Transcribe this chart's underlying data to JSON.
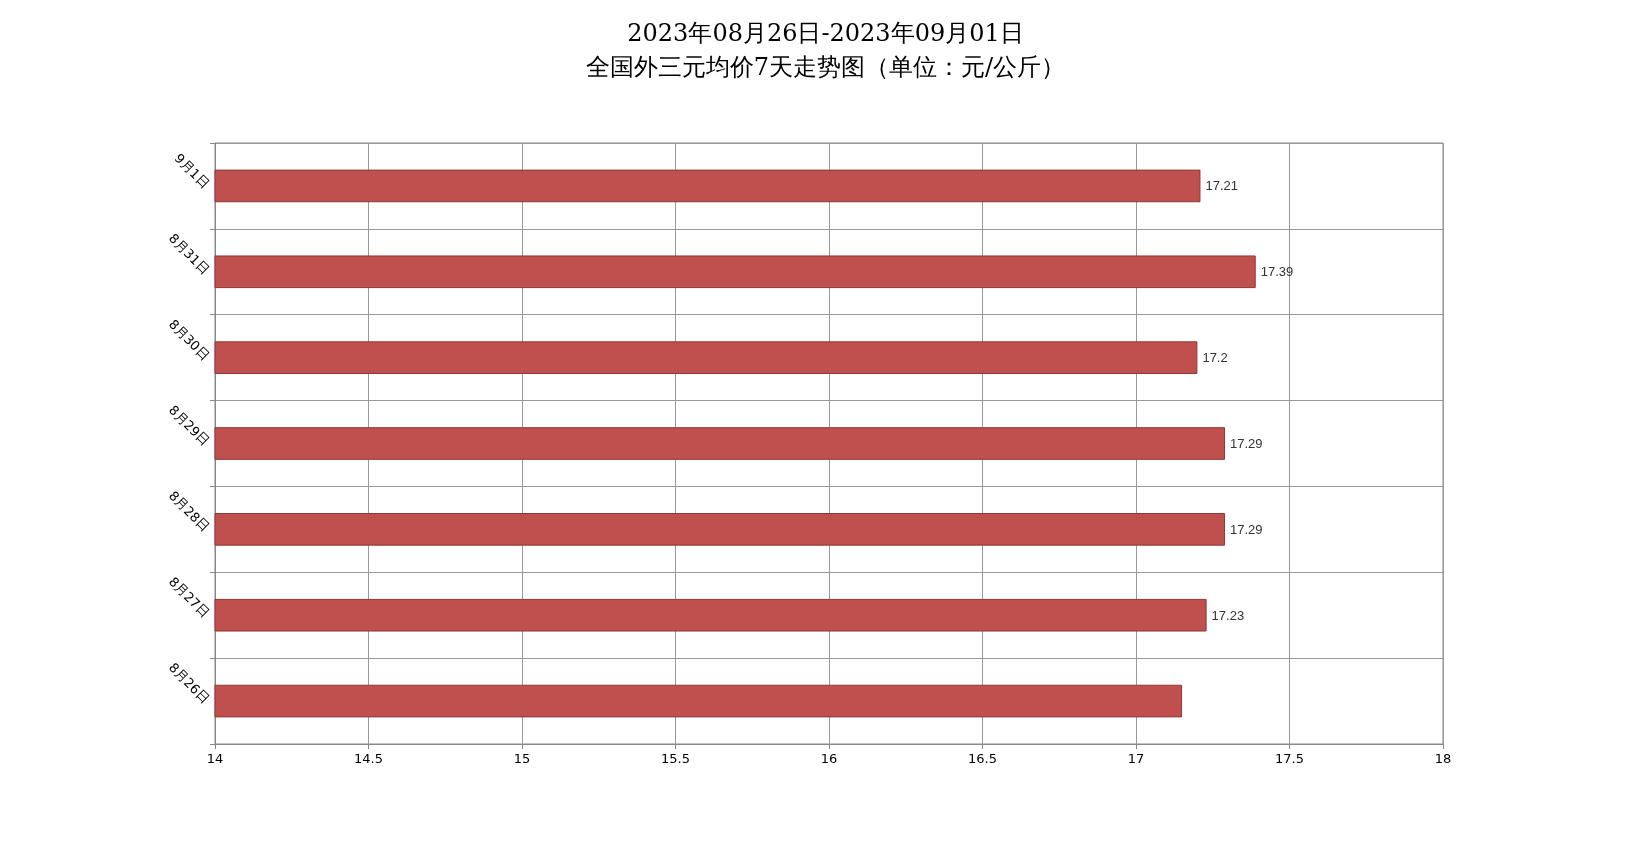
{
  "chart_data": {
    "type": "bar",
    "orientation": "horizontal",
    "title": "2023年08月26日-2023年09月01日",
    "subtitle": "全国外三元均价7天走势图（单位：元/公斤）",
    "categories": [
      "9月1日",
      "8月31日",
      "8月30日",
      "8月29日",
      "8月28日",
      "8月27日",
      "8月26日"
    ],
    "values": [
      17.21,
      17.39,
      17.2,
      17.29,
      17.29,
      17.23,
      17.15
    ],
    "value_labels": [
      "17.21",
      "17.39",
      "17.2",
      "17.29",
      "17.29",
      "17.23",
      null
    ],
    "color": "#c0504d",
    "xlim": [
      14,
      18
    ],
    "xticks": [
      14,
      14.5,
      15,
      15.5,
      16,
      16.5,
      17,
      17.5,
      18
    ],
    "grid": true
  }
}
